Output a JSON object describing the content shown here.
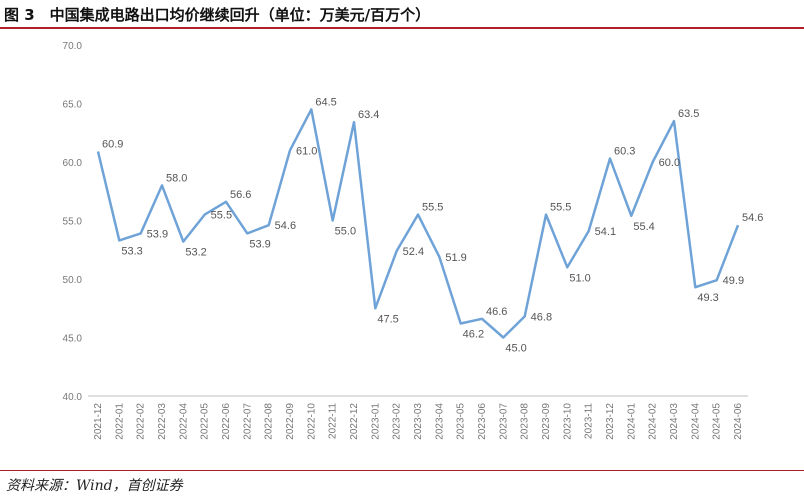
{
  "figure": {
    "title": "图 3　中国集成电路出口均价继续回升（单位：万美元/百万个）",
    "source": "资料来源：Wind，首创证券"
  },
  "chart_data": {
    "type": "line",
    "title": "",
    "xlabel": "",
    "ylabel": "",
    "ylim": [
      40.0,
      70.0
    ],
    "yticks": [
      40.0,
      45.0,
      50.0,
      55.0,
      60.0,
      65.0,
      70.0
    ],
    "grid": false,
    "legend": "none",
    "color": "#6fa3d8",
    "categories": [
      "2021-12",
      "2022-01",
      "2022-02",
      "2022-03",
      "2022-04",
      "2022-05",
      "2022-06",
      "2022-07",
      "2022-08",
      "2022-09",
      "2022-10",
      "2022-11",
      "2022-12",
      "2023-01",
      "2023-02",
      "2023-03",
      "2023-04",
      "2023-05",
      "2023-06",
      "2023-07",
      "2023-08",
      "2023-09",
      "2023-10",
      "2023-11",
      "2023-12",
      "2024-01",
      "2024-02",
      "2024-03",
      "2024-04",
      "2024-05",
      "2024-06"
    ],
    "values": [
      60.9,
      53.3,
      53.9,
      58.0,
      53.2,
      55.5,
      56.6,
      53.9,
      54.6,
      61.0,
      64.5,
      55.0,
      63.4,
      47.5,
      52.4,
      55.5,
      51.9,
      46.2,
      46.6,
      45.0,
      46.8,
      55.5,
      51.0,
      54.1,
      60.3,
      55.4,
      60.0,
      63.5,
      49.3,
      49.9,
      54.6
    ],
    "data_labels": [
      "60.9",
      "53.3",
      "53.9",
      "58.0",
      "53.2",
      "55.5",
      "56.6",
      "53.9",
      "54.6",
      "61.0",
      "64.5",
      "55.0",
      "63.4",
      "47.5",
      "52.4",
      "55.5",
      "51.9",
      "46.2",
      "46.6",
      "45.0",
      "46.8",
      "55.5",
      "51.0",
      "54.1",
      "60.3",
      "55.4",
      "60.0",
      "63.5",
      "49.3",
      "49.9",
      "54.6"
    ]
  }
}
